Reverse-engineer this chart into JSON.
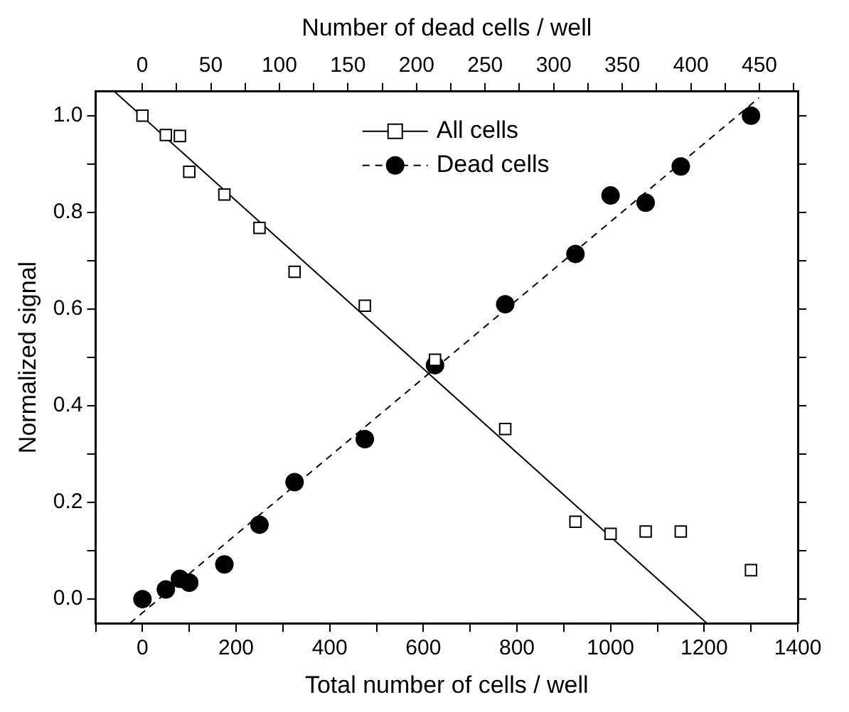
{
  "chart_data": {
    "type": "scatter",
    "xlabel": "Total number of cells / well",
    "ylabel": "Normalized signal",
    "x2label": "Number of dead cells / well",
    "xlim": [
      -100,
      1400
    ],
    "xticks": [
      {
        "value": -100,
        "label": null
      },
      0,
      {
        "value": 100,
        "label": null
      },
      200,
      {
        "value": 300,
        "label": null
      },
      400,
      {
        "value": 500,
        "label": null
      },
      600,
      {
        "value": 700,
        "label": null
      },
      800,
      {
        "value": 900,
        "label": null
      },
      1000,
      {
        "value": 1100,
        "label": null
      },
      1200,
      {
        "value": 1300,
        "label": null
      },
      1400
    ],
    "x2lim": [
      -34,
      478
    ],
    "x2ticks": [
      0,
      {
        "value": 25,
        "label": null
      },
      50,
      {
        "value": 75,
        "label": null
      },
      100,
      {
        "value": 125,
        "label": null
      },
      150,
      {
        "value": 175,
        "label": null
      },
      200,
      {
        "value": 225,
        "label": null
      },
      250,
      {
        "value": 275,
        "label": null
      },
      300,
      {
        "value": 325,
        "label": null
      },
      350,
      {
        "value": 375,
        "label": null
      },
      400,
      {
        "value": 425,
        "label": null
      },
      450,
      {
        "value": 475,
        "label": null
      }
    ],
    "ylim": [
      -0.05,
      1.05
    ],
    "yticks": [
      {
        "value": 0,
        "label": "0.0"
      },
      {
        "value": 0.1,
        "label": null
      },
      {
        "value": 0.2,
        "label": "0.2"
      },
      {
        "value": 0.3,
        "label": null
      },
      {
        "value": 0.4,
        "label": "0.4"
      },
      {
        "value": 0.5,
        "label": null
      },
      {
        "value": 0.6,
        "label": "0.6"
      },
      {
        "value": 0.7,
        "label": null
      },
      {
        "value": 0.8,
        "label": "0.8"
      },
      {
        "value": 0.9,
        "label": null
      },
      {
        "value": 1,
        "label": "1.0"
      }
    ],
    "grid": false,
    "legend": "top",
    "x": [
      0,
      50,
      80,
      100,
      175,
      250,
      325,
      475,
      625,
      775,
      925,
      1000,
      1075,
      1150,
      1300
    ],
    "series": [
      {
        "name": "All cells",
        "type": "scatter",
        "marker": "square",
        "color": "#000000",
        "values": [
          1.0,
          0.96,
          0.958,
          0.884,
          0.837,
          0.768,
          0.677,
          0.607,
          0.495,
          0.352,
          0.16,
          0.135,
          0.14,
          0.14,
          0.06
        ]
      },
      {
        "type": "line",
        "x": [
          -60,
          1206
        ],
        "values": [
          1.05,
          -0.05
        ],
        "line_style": "solid",
        "marker": "none",
        "color": "#000000"
      },
      {
        "name": "Dead cells",
        "type": "scatter",
        "marker": "circle",
        "color": "#000000",
        "values": [
          0.0,
          0.02,
          0.042,
          0.034,
          0.072,
          0.154,
          0.242,
          0.331,
          0.484,
          0.61,
          0.714,
          0.835,
          0.82,
          0.895,
          1.0
        ]
      },
      {
        "type": "line",
        "x": [
          -27,
          1317
        ],
        "values": [
          -0.05,
          1.037
        ],
        "line_style": "dashed",
        "marker": "none",
        "color": "#000000"
      }
    ]
  }
}
